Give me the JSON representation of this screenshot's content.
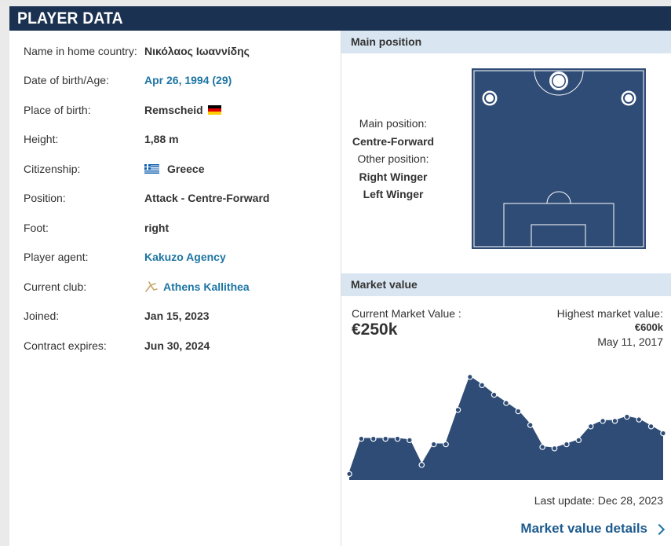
{
  "header": {
    "title": "PLAYER DATA"
  },
  "player": [
    {
      "label": "Name in home country:",
      "value": "Νικόλαος Ιωαννίδης",
      "type": "text"
    },
    {
      "label": "Date of birth/Age:",
      "value": "Apr 26, 1994 (29)",
      "type": "link"
    },
    {
      "label": "Place of birth:",
      "value": "Remscheid",
      "type": "text",
      "flag": "germany-flag"
    },
    {
      "label": "Height:",
      "value": "1,88 m",
      "type": "text"
    },
    {
      "label": "Citizenship:",
      "value": "Greece",
      "type": "text",
      "flag": "greece-flag"
    },
    {
      "label": "Position:",
      "value": "Attack - Centre-Forward",
      "type": "text"
    },
    {
      "label": "Foot:",
      "value": "right",
      "type": "text"
    },
    {
      "label": "Player agent:",
      "value": "Kakuzo Agency",
      "type": "link"
    },
    {
      "label": "Current club:",
      "value": "Athens Kallithea",
      "type": "link",
      "icon": "club-crest-icon"
    },
    {
      "label": "Joined:",
      "value": "Jan 15, 2023",
      "type": "text"
    },
    {
      "label": "Contract expires:",
      "value": "Jun 30, 2024",
      "type": "text"
    }
  ],
  "main_position": {
    "title": "Main position",
    "main_label": "Main position:",
    "main_value": "Centre-Forward",
    "other_label": "Other position:",
    "other_values": [
      "Right Winger",
      "Left Winger"
    ]
  },
  "market_value": {
    "title": "Market value",
    "current_label": "Current Market Value :",
    "current_value": "€250k",
    "highest_label": "Highest market value:",
    "highest_value": "€600k",
    "highest_date": "May 11, 2017",
    "last_update": "Last update: Dec 28, 2023",
    "details_link": "Market value details"
  },
  "colors": {
    "header": "#1a3151",
    "accent": "#1d75a3",
    "pitch": "#2f4c76",
    "section": "#d9e6f1"
  },
  "chart_data": {
    "type": "area",
    "title": "",
    "xlabel": "",
    "ylabel": "",
    "note": "Market value trend (unlabeled axes); relative values estimated",
    "values": [
      22,
      150,
      150,
      150,
      150,
      145,
      55,
      130,
      130,
      255,
      375,
      345,
      310,
      280,
      250,
      200,
      120,
      115,
      130,
      145,
      195,
      215,
      215,
      230,
      220,
      195,
      170
    ]
  }
}
